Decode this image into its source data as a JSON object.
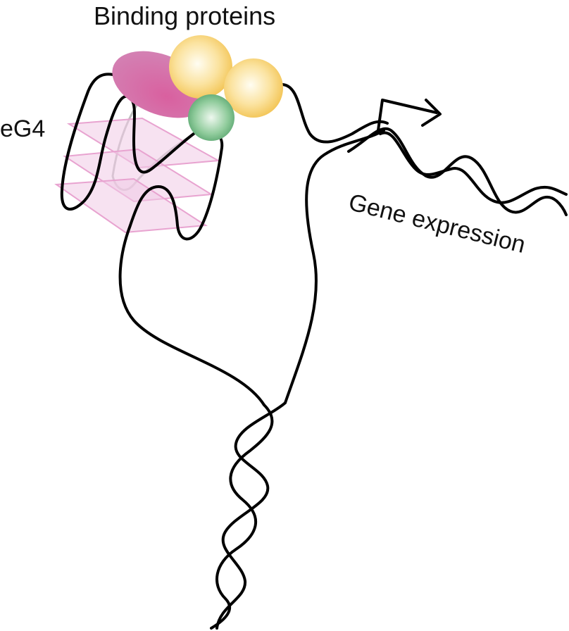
{
  "labels": {
    "binding_proteins": "Binding proteins",
    "eg4": "eG4",
    "gene_expression": "Gene expression"
  },
  "colors": {
    "dna_strand": "#000000",
    "g_tetrad_plane": "#e9a9d4",
    "magenta_protein": "#cf6aa8",
    "yellow_protein": "#f6cf6e",
    "green_protein": "#5fae78"
  },
  "icons": {
    "transcription_start": "bent-arrow-icon"
  }
}
